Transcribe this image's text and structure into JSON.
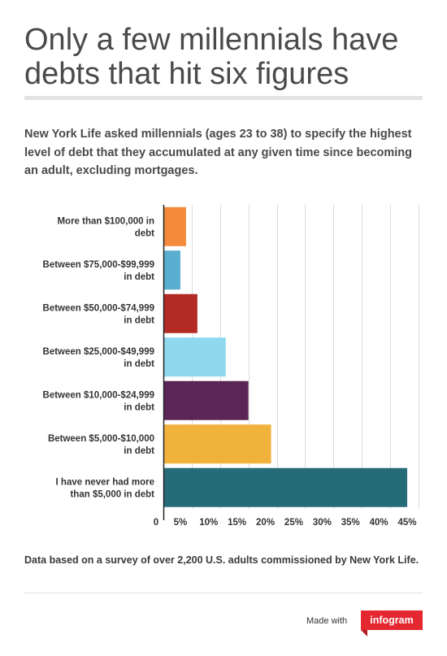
{
  "header": {
    "title": "Only a few millennials have debts that hit six figures",
    "subtitle": "New York Life asked millennials (ages 23 to 38) to specify the highest level of debt that they accumulated at any given time since becoming an adult, excluding mortgages."
  },
  "chart_data": {
    "type": "bar",
    "orientation": "horizontal",
    "categories": [
      "More than $100,000 in debt",
      "Between $75,000-$99,999 in debt",
      "Between $50,000-$74,999 in debt",
      "Between $25,000-$49,999 in debt",
      "Between $10,000-$24,999 in debt",
      "Between $5,000-$10,000 in debt",
      "I have never had more than $5,000 in debt"
    ],
    "values": [
      4,
      3,
      6,
      11,
      15,
      19,
      43
    ],
    "colors": [
      "#f58a3d",
      "#5aaed0",
      "#b12a24",
      "#8ed9ed",
      "#5b2656",
      "#f1b23b",
      "#266b78"
    ],
    "xlim": [
      0,
      45
    ],
    "ticks": [
      0,
      5,
      10,
      15,
      20,
      25,
      30,
      35,
      40,
      45
    ],
    "tick_labels": [
      "0",
      "5%",
      "10%",
      "15%",
      "20%",
      "25%",
      "30%",
      "35%",
      "40%",
      "45%"
    ],
    "grid": true
  },
  "footer": {
    "source": "Data based on a survey of over 2,200 U.S. adults commissioned by New York Life.",
    "made_with": "Made with",
    "brand": "infogram"
  }
}
